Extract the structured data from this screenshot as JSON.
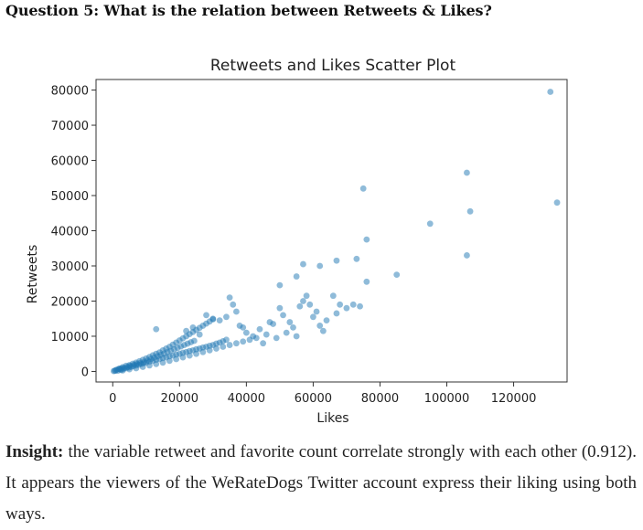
{
  "question": "Question 5: What is the relation between Retweets & Likes?",
  "insight": {
    "lead": "Insight:",
    "text": " the variable retweet and favorite count correlate strongly with each other (0.912). It appears the viewers of the WeRateDogs Twitter account express their liking using both ways."
  },
  "chart_data": {
    "type": "scatter",
    "title": "Retweets and Likes Scatter Plot",
    "xlabel": "Likes",
    "ylabel": "Retweets",
    "xlim": [
      -5000,
      136000
    ],
    "ylim": [
      -3000,
      83000
    ],
    "xticks": [
      0,
      20000,
      40000,
      60000,
      80000,
      100000,
      120000
    ],
    "yticks": [
      0,
      10000,
      20000,
      30000,
      40000,
      50000,
      60000,
      70000,
      80000
    ],
    "grid": false,
    "marker_color": "#1f77b4",
    "marker_alpha": 0.5,
    "points": [
      [
        1500,
        200
      ],
      [
        2500,
        400
      ],
      [
        3200,
        700
      ],
      [
        4000,
        900
      ],
      [
        4800,
        1100
      ],
      [
        5500,
        1300
      ],
      [
        6200,
        1500
      ],
      [
        7000,
        1700
      ],
      [
        7800,
        1900
      ],
      [
        8500,
        2100
      ],
      [
        9200,
        2300
      ],
      [
        10000,
        2500
      ],
      [
        11000,
        2800
      ],
      [
        12000,
        3000
      ],
      [
        13000,
        3300
      ],
      [
        14000,
        3500
      ],
      [
        15000,
        3800
      ],
      [
        16000,
        4000
      ],
      [
        17000,
        4300
      ],
      [
        18000,
        4500
      ],
      [
        19000,
        4800
      ],
      [
        20000,
        5000
      ],
      [
        21000,
        5300
      ],
      [
        22000,
        5500
      ],
      [
        23000,
        5800
      ],
      [
        24000,
        6000
      ],
      [
        25000,
        6300
      ],
      [
        26000,
        6500
      ],
      [
        27000,
        6800
      ],
      [
        28000,
        7000
      ],
      [
        29000,
        7300
      ],
      [
        30000,
        7500
      ],
      [
        31000,
        7900
      ],
      [
        32000,
        8200
      ],
      [
        33000,
        8600
      ],
      [
        34000,
        9000
      ],
      [
        2000,
        800
      ],
      [
        3000,
        1200
      ],
      [
        4000,
        1600
      ],
      [
        5000,
        1800
      ],
      [
        6000,
        2200
      ],
      [
        7000,
        2500
      ],
      [
        8000,
        2900
      ],
      [
        9000,
        3300
      ],
      [
        10000,
        3700
      ],
      [
        11000,
        4100
      ],
      [
        12000,
        4600
      ],
      [
        13000,
        5000
      ],
      [
        14000,
        5400
      ],
      [
        15000,
        6000
      ],
      [
        16000,
        6500
      ],
      [
        17000,
        7000
      ],
      [
        18000,
        7600
      ],
      [
        19000,
        8200
      ],
      [
        20000,
        8800
      ],
      [
        21000,
        9400
      ],
      [
        22000,
        10000
      ],
      [
        23000,
        10600
      ],
      [
        24000,
        11200
      ],
      [
        25000,
        11800
      ],
      [
        26000,
        12400
      ],
      [
        27000,
        13000
      ],
      [
        28000,
        13600
      ],
      [
        29000,
        14200
      ],
      [
        30000,
        14800
      ],
      [
        3000,
        300
      ],
      [
        5000,
        600
      ],
      [
        7000,
        900
      ],
      [
        9000,
        1300
      ],
      [
        11000,
        1700
      ],
      [
        13000,
        2100
      ],
      [
        15000,
        2500
      ],
      [
        17000,
        3000
      ],
      [
        19000,
        3500
      ],
      [
        21000,
        4000
      ],
      [
        23000,
        4500
      ],
      [
        25000,
        5000
      ],
      [
        27000,
        5500
      ],
      [
        29000,
        6000
      ],
      [
        31000,
        6500
      ],
      [
        33000,
        7000
      ],
      [
        35000,
        7500
      ],
      [
        37000,
        8000
      ],
      [
        39000,
        8500
      ],
      [
        41000,
        9000
      ],
      [
        43000,
        9500
      ],
      [
        13000,
        12000
      ],
      [
        22000,
        11500
      ],
      [
        24000,
        12500
      ],
      [
        26000,
        10500
      ],
      [
        28000,
        16000
      ],
      [
        30000,
        15000
      ],
      [
        32000,
        14500
      ],
      [
        34000,
        15500
      ],
      [
        35000,
        21000
      ],
      [
        36000,
        19000
      ],
      [
        37000,
        17000
      ],
      [
        38000,
        13000
      ],
      [
        39000,
        12500
      ],
      [
        40000,
        11000
      ],
      [
        42000,
        10000
      ],
      [
        44000,
        12000
      ],
      [
        45000,
        8000
      ],
      [
        46000,
        10500
      ],
      [
        47000,
        14000
      ],
      [
        48000,
        13500
      ],
      [
        49000,
        9500
      ],
      [
        50000,
        18000
      ],
      [
        51000,
        16000
      ],
      [
        52000,
        11000
      ],
      [
        53000,
        14000
      ],
      [
        54000,
        12500
      ],
      [
        55000,
        10000
      ],
      [
        56000,
        18500
      ],
      [
        57000,
        20000
      ],
      [
        58000,
        21500
      ],
      [
        59000,
        19000
      ],
      [
        60000,
        15500
      ],
      [
        61000,
        17000
      ],
      [
        62000,
        13000
      ],
      [
        63000,
        11500
      ],
      [
        64000,
        14500
      ],
      [
        66000,
        21500
      ],
      [
        67000,
        16500
      ],
      [
        68000,
        19000
      ],
      [
        70000,
        18000
      ],
      [
        72000,
        19000
      ],
      [
        74000,
        18500
      ],
      [
        50000,
        24500
      ],
      [
        55000,
        27000
      ],
      [
        57000,
        30500
      ],
      [
        62000,
        30000
      ],
      [
        67000,
        31500
      ],
      [
        73000,
        32000
      ],
      [
        76000,
        25500
      ],
      [
        76000,
        37500
      ],
      [
        75000,
        52000
      ],
      [
        85000,
        27500
      ],
      [
        95000,
        42000
      ],
      [
        106000,
        33000
      ],
      [
        106000,
        56500
      ],
      [
        107000,
        45500
      ],
      [
        131000,
        79500
      ],
      [
        133000,
        48000
      ],
      [
        300,
        100
      ],
      [
        600,
        200
      ],
      [
        900,
        300
      ],
      [
        1200,
        500
      ],
      [
        1800,
        700
      ],
      [
        2200,
        600
      ],
      [
        2600,
        900
      ],
      [
        3400,
        1000
      ],
      [
        4400,
        1300
      ],
      [
        5200,
        1600
      ],
      [
        6400,
        1900
      ],
      [
        7200,
        2100
      ],
      [
        8200,
        2400
      ],
      [
        9400,
        2700
      ],
      [
        10400,
        3100
      ],
      [
        11400,
        3500
      ],
      [
        12400,
        3900
      ],
      [
        13400,
        4300
      ],
      [
        14400,
        4700
      ],
      [
        15400,
        5100
      ],
      [
        16400,
        5500
      ],
      [
        17400,
        5900
      ],
      [
        18400,
        6300
      ],
      [
        19400,
        6700
      ],
      [
        20400,
        7100
      ],
      [
        21400,
        7500
      ],
      [
        22400,
        7900
      ],
      [
        23400,
        8300
      ],
      [
        24400,
        8700
      ]
    ]
  }
}
